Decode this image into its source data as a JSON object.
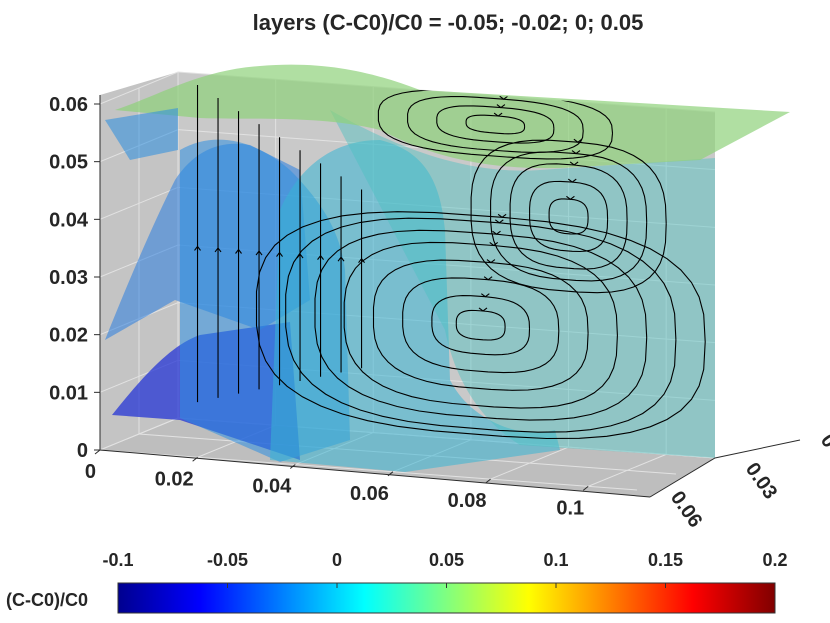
{
  "chart_data": {
    "type": "3d-slice-isosurface",
    "title": "layers (C-C0)/C0 = -0.05; -0.02; 0; 0.05",
    "isosurface_levels": [
      -0.05,
      -0.02,
      0,
      0.05
    ],
    "isosurface_colors": [
      "#1f2fd6",
      "#2a7de0",
      "#36b4d4",
      "#8fd27a"
    ],
    "axes": {
      "x": {
        "range": [
          0,
          0.11
        ],
        "ticks": [
          0,
          0.02,
          0.04,
          0.06,
          0.08,
          0.1
        ],
        "tick_labels": [
          "0",
          "0.02",
          "0.04",
          "0.06",
          "0.08",
          "0.1"
        ]
      },
      "y": {
        "range": [
          0,
          0.06
        ],
        "ticks": [
          0,
          0.03,
          0.06
        ],
        "tick_labels": [
          "0",
          "0.03",
          "0.06"
        ]
      },
      "z": {
        "range": [
          0,
          0.06
        ],
        "ticks": [
          0,
          0.01,
          0.02,
          0.03,
          0.04,
          0.05,
          0.06
        ],
        "tick_labels": [
          "0",
          "0.01",
          "0.02",
          "0.03",
          "0.04",
          "0.05",
          "0.06"
        ]
      }
    },
    "grid": true,
    "background": "#c6c6c6",
    "streamlines": {
      "plane_y": 0,
      "vortex_centers": [
        {
          "x": 0.062,
          "z": 0.02
        },
        {
          "x": 0.08,
          "z": 0.04
        },
        {
          "x": 0.065,
          "z": 0.055
        }
      ],
      "color": "#000000"
    },
    "colorbar": {
      "label": "(C-C0)/C0",
      "range": [
        -0.1,
        0.2
      ],
      "ticks": [
        -0.1,
        -0.05,
        0,
        0.05,
        0.1,
        0.15,
        0.2
      ],
      "tick_labels": [
        "-0.1",
        "-0.05",
        "0",
        "0.05",
        "0.1",
        "0.15",
        "0.2"
      ],
      "colormap": "jet",
      "placement": "bottom"
    }
  }
}
